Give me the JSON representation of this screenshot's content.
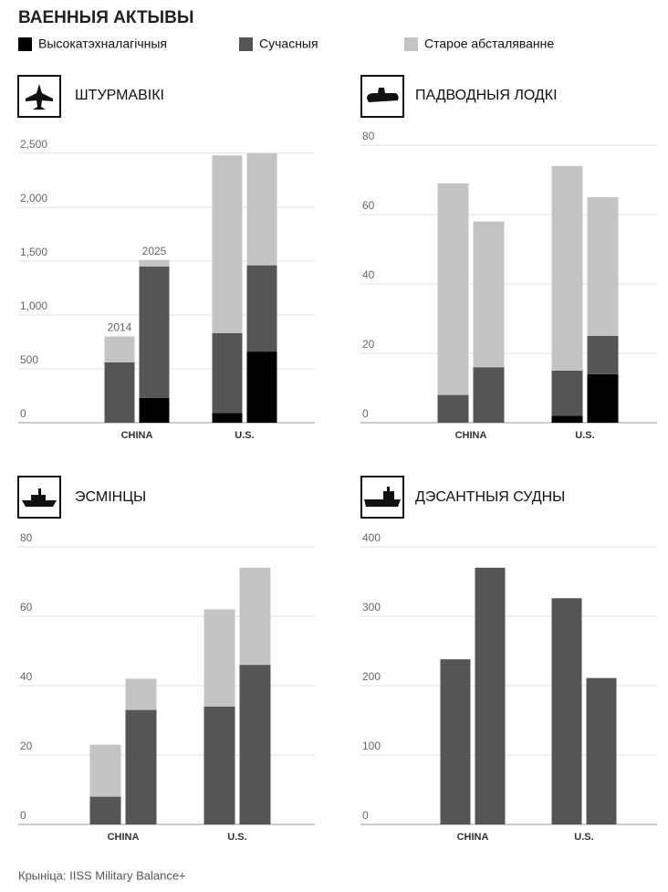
{
  "title": "ВАЕННЫЯ АКТЫВЫ",
  "source": "Крыніца: IISS Military Balance+",
  "chart_data": [
    {
      "type": "bar",
      "stacked": true,
      "title": "ШТУРМАВІКІ",
      "groups": [
        "CHINA",
        "U.S."
      ],
      "categories": [
        "2014",
        "2025",
        null,
        null
      ],
      "series": [
        {
          "name": "Высокатэхналагічныя",
          "color": "#000000",
          "values": [
            0,
            230,
            90,
            660
          ]
        },
        {
          "name": "Сучасныя",
          "color": "#555555",
          "values": [
            560,
            1220,
            740,
            800
          ]
        },
        {
          "name": "Старое абсталяванне",
          "color": "#c4c4c4",
          "values": [
            240,
            60,
            1650,
            1040
          ]
        }
      ],
      "ylim": [
        0,
        2600
      ],
      "yticks": [
        0,
        500,
        {
          "value": 1000,
          "label": "1,000"
        },
        {
          "value": 1500,
          "label": "1,500"
        },
        {
          "value": 2000,
          "label": "2,000"
        },
        {
          "value": 2500,
          "label": "2,500"
        }
      ],
      "grid": true
    },
    {
      "type": "bar",
      "stacked": true,
      "title": "ПАДВОДНЫЯ ЛОДКІ",
      "groups": [
        "CHINA",
        "U.S."
      ],
      "categories": [
        null,
        null,
        null,
        null
      ],
      "series": [
        {
          "name": "Высокатэхналагічныя",
          "color": "#000000",
          "values": [
            0,
            0,
            2,
            14
          ]
        },
        {
          "name": "Сучасныя",
          "color": "#555555",
          "values": [
            8,
            16,
            13,
            11
          ]
        },
        {
          "name": "Старое абсталяванне",
          "color": "#c4c4c4",
          "values": [
            61,
            42,
            59,
            40
          ]
        }
      ],
      "ylim": [
        0,
        80
      ],
      "yticks": [
        0,
        20,
        40,
        60,
        80
      ],
      "grid": true
    },
    {
      "type": "bar",
      "stacked": true,
      "title": "ЭСМІНЦЫ",
      "groups": [
        "CHINA",
        "U.S."
      ],
      "categories": [
        null,
        null,
        null,
        null
      ],
      "series": [
        {
          "name": "Сучасныя",
          "color": "#555555",
          "values": [
            8,
            33,
            34,
            46
          ]
        },
        {
          "name": "Старое абсталяванне",
          "color": "#c4c4c4",
          "values": [
            15,
            9,
            28,
            28
          ]
        }
      ],
      "ylim": [
        0,
        80
      ],
      "yticks": [
        0,
        20,
        40,
        60,
        80
      ],
      "grid": true
    },
    {
      "type": "bar",
      "stacked": true,
      "title": "ДЭСАНТНЫЯ СУДНЫ",
      "groups": [
        "CHINA",
        "U.S."
      ],
      "categories": [
        null,
        null,
        null,
        null
      ],
      "series": [
        {
          "name": "Сучасныя",
          "color": "#555555",
          "values": [
            238,
            370,
            326,
            211
          ]
        }
      ],
      "ylim": [
        0,
        400
      ],
      "yticks": [
        0,
        100,
        200,
        300,
        400
      ],
      "grid": true
    }
  ]
}
